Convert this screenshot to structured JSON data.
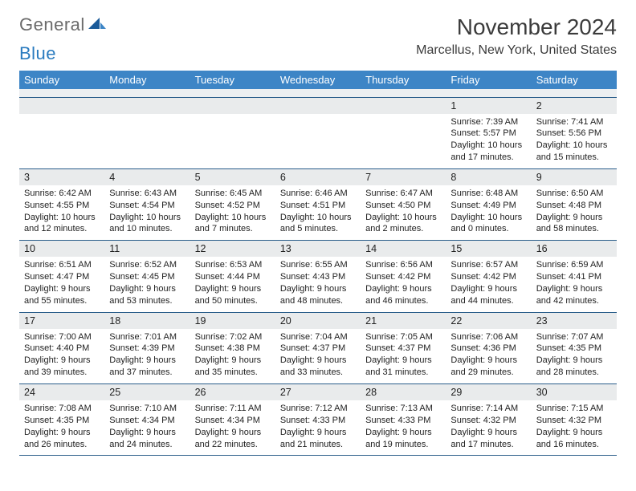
{
  "logo": {
    "word1": "General",
    "word2": "Blue"
  },
  "title": "November 2024",
  "location": "Marcellus, New York, United States",
  "colors": {
    "header_bg": "#3d85c6",
    "header_text": "#ffffff",
    "daynum_bg": "#e9ebec",
    "row_border": "#2a5d8a",
    "logo_gray": "#6b6b6b",
    "logo_blue": "#2a7bbf"
  },
  "dayHeaders": [
    "Sunday",
    "Monday",
    "Tuesday",
    "Wednesday",
    "Thursday",
    "Friday",
    "Saturday"
  ],
  "weeks": [
    [
      null,
      null,
      null,
      null,
      null,
      {
        "n": "1",
        "sr": "Sunrise: 7:39 AM",
        "ss": "Sunset: 5:57 PM",
        "d1": "Daylight: 10 hours",
        "d2": "and 17 minutes."
      },
      {
        "n": "2",
        "sr": "Sunrise: 7:41 AM",
        "ss": "Sunset: 5:56 PM",
        "d1": "Daylight: 10 hours",
        "d2": "and 15 minutes."
      }
    ],
    [
      {
        "n": "3",
        "sr": "Sunrise: 6:42 AM",
        "ss": "Sunset: 4:55 PM",
        "d1": "Daylight: 10 hours",
        "d2": "and 12 minutes."
      },
      {
        "n": "4",
        "sr": "Sunrise: 6:43 AM",
        "ss": "Sunset: 4:54 PM",
        "d1": "Daylight: 10 hours",
        "d2": "and 10 minutes."
      },
      {
        "n": "5",
        "sr": "Sunrise: 6:45 AM",
        "ss": "Sunset: 4:52 PM",
        "d1": "Daylight: 10 hours",
        "d2": "and 7 minutes."
      },
      {
        "n": "6",
        "sr": "Sunrise: 6:46 AM",
        "ss": "Sunset: 4:51 PM",
        "d1": "Daylight: 10 hours",
        "d2": "and 5 minutes."
      },
      {
        "n": "7",
        "sr": "Sunrise: 6:47 AM",
        "ss": "Sunset: 4:50 PM",
        "d1": "Daylight: 10 hours",
        "d2": "and 2 minutes."
      },
      {
        "n": "8",
        "sr": "Sunrise: 6:48 AM",
        "ss": "Sunset: 4:49 PM",
        "d1": "Daylight: 10 hours",
        "d2": "and 0 minutes."
      },
      {
        "n": "9",
        "sr": "Sunrise: 6:50 AM",
        "ss": "Sunset: 4:48 PM",
        "d1": "Daylight: 9 hours",
        "d2": "and 58 minutes."
      }
    ],
    [
      {
        "n": "10",
        "sr": "Sunrise: 6:51 AM",
        "ss": "Sunset: 4:47 PM",
        "d1": "Daylight: 9 hours",
        "d2": "and 55 minutes."
      },
      {
        "n": "11",
        "sr": "Sunrise: 6:52 AM",
        "ss": "Sunset: 4:45 PM",
        "d1": "Daylight: 9 hours",
        "d2": "and 53 minutes."
      },
      {
        "n": "12",
        "sr": "Sunrise: 6:53 AM",
        "ss": "Sunset: 4:44 PM",
        "d1": "Daylight: 9 hours",
        "d2": "and 50 minutes."
      },
      {
        "n": "13",
        "sr": "Sunrise: 6:55 AM",
        "ss": "Sunset: 4:43 PM",
        "d1": "Daylight: 9 hours",
        "d2": "and 48 minutes."
      },
      {
        "n": "14",
        "sr": "Sunrise: 6:56 AM",
        "ss": "Sunset: 4:42 PM",
        "d1": "Daylight: 9 hours",
        "d2": "and 46 minutes."
      },
      {
        "n": "15",
        "sr": "Sunrise: 6:57 AM",
        "ss": "Sunset: 4:42 PM",
        "d1": "Daylight: 9 hours",
        "d2": "and 44 minutes."
      },
      {
        "n": "16",
        "sr": "Sunrise: 6:59 AM",
        "ss": "Sunset: 4:41 PM",
        "d1": "Daylight: 9 hours",
        "d2": "and 42 minutes."
      }
    ],
    [
      {
        "n": "17",
        "sr": "Sunrise: 7:00 AM",
        "ss": "Sunset: 4:40 PM",
        "d1": "Daylight: 9 hours",
        "d2": "and 39 minutes."
      },
      {
        "n": "18",
        "sr": "Sunrise: 7:01 AM",
        "ss": "Sunset: 4:39 PM",
        "d1": "Daylight: 9 hours",
        "d2": "and 37 minutes."
      },
      {
        "n": "19",
        "sr": "Sunrise: 7:02 AM",
        "ss": "Sunset: 4:38 PM",
        "d1": "Daylight: 9 hours",
        "d2": "and 35 minutes."
      },
      {
        "n": "20",
        "sr": "Sunrise: 7:04 AM",
        "ss": "Sunset: 4:37 PM",
        "d1": "Daylight: 9 hours",
        "d2": "and 33 minutes."
      },
      {
        "n": "21",
        "sr": "Sunrise: 7:05 AM",
        "ss": "Sunset: 4:37 PM",
        "d1": "Daylight: 9 hours",
        "d2": "and 31 minutes."
      },
      {
        "n": "22",
        "sr": "Sunrise: 7:06 AM",
        "ss": "Sunset: 4:36 PM",
        "d1": "Daylight: 9 hours",
        "d2": "and 29 minutes."
      },
      {
        "n": "23",
        "sr": "Sunrise: 7:07 AM",
        "ss": "Sunset: 4:35 PM",
        "d1": "Daylight: 9 hours",
        "d2": "and 28 minutes."
      }
    ],
    [
      {
        "n": "24",
        "sr": "Sunrise: 7:08 AM",
        "ss": "Sunset: 4:35 PM",
        "d1": "Daylight: 9 hours",
        "d2": "and 26 minutes."
      },
      {
        "n": "25",
        "sr": "Sunrise: 7:10 AM",
        "ss": "Sunset: 4:34 PM",
        "d1": "Daylight: 9 hours",
        "d2": "and 24 minutes."
      },
      {
        "n": "26",
        "sr": "Sunrise: 7:11 AM",
        "ss": "Sunset: 4:34 PM",
        "d1": "Daylight: 9 hours",
        "d2": "and 22 minutes."
      },
      {
        "n": "27",
        "sr": "Sunrise: 7:12 AM",
        "ss": "Sunset: 4:33 PM",
        "d1": "Daylight: 9 hours",
        "d2": "and 21 minutes."
      },
      {
        "n": "28",
        "sr": "Sunrise: 7:13 AM",
        "ss": "Sunset: 4:33 PM",
        "d1": "Daylight: 9 hours",
        "d2": "and 19 minutes."
      },
      {
        "n": "29",
        "sr": "Sunrise: 7:14 AM",
        "ss": "Sunset: 4:32 PM",
        "d1": "Daylight: 9 hours",
        "d2": "and 17 minutes."
      },
      {
        "n": "30",
        "sr": "Sunrise: 7:15 AM",
        "ss": "Sunset: 4:32 PM",
        "d1": "Daylight: 9 hours",
        "d2": "and 16 minutes."
      }
    ]
  ]
}
